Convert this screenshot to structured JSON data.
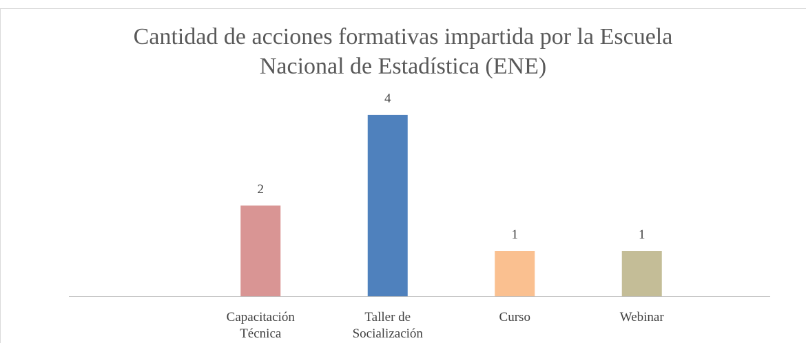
{
  "chart_data": {
    "type": "bar",
    "title": "Cantidad de acciones formativas impartida por la Escuela Nacional de Estadística (ENE)",
    "categories": [
      "Capacitación Técnica",
      "Taller de Socialización",
      "Curso",
      "Webinar"
    ],
    "values": [
      2,
      4,
      1,
      1
    ],
    "colors": [
      "#d99594",
      "#4f81bd",
      "#fac090",
      "#c4bd97"
    ]
  }
}
